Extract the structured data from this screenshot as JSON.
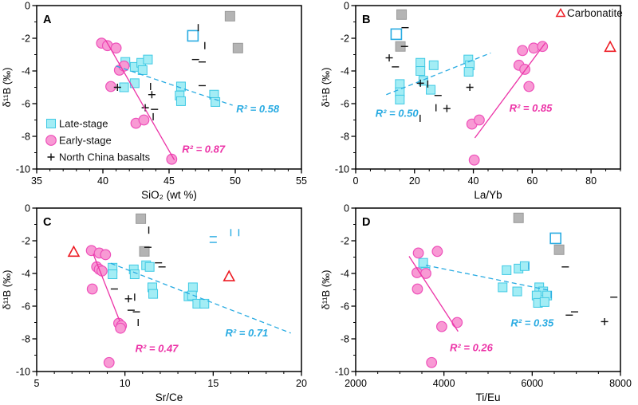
{
  "figure": {
    "ylabel": "δ¹¹B (‰)",
    "style": {
      "late_fill": "#a3edf5",
      "late_edge": "#3fc9e4",
      "early_fill": "#f89ad4",
      "early_edge": "#ee50ba",
      "gray_fill": "#b4b4b4",
      "gray_edge": "#9a9a9a",
      "cyan_line": "#29abe2",
      "magenta_line": "#ec33a7",
      "red": "#ed1c24",
      "black": "#111111"
    }
  },
  "chart_data": [
    {
      "id": "A",
      "type": "scatter",
      "xlabel": "SiO₂ (wt %)",
      "ylabel": "δ¹¹B (‰)",
      "xlim": [
        35,
        55
      ],
      "xticks": [
        35,
        40,
        45,
        50,
        55
      ],
      "xminor": 1,
      "ylim": [
        -10,
        0
      ],
      "yticks": [
        0,
        -2,
        -4,
        -6,
        -8,
        -10
      ],
      "yminor": 1,
      "series": [
        {
          "name": "Late-stage",
          "marker": "square",
          "points": [
            [
              41.7,
              -3.45
            ],
            [
              42.4,
              -3.75
            ],
            [
              42.9,
              -3.5
            ],
            [
              43.4,
              -3.3
            ],
            [
              43.0,
              -3.95
            ],
            [
              41.6,
              -5.0
            ],
            [
              42.4,
              -4.75
            ],
            [
              45.9,
              -4.95
            ],
            [
              45.8,
              -5.5
            ],
            [
              45.9,
              -5.85
            ],
            [
              48.4,
              -5.45
            ],
            [
              48.5,
              -5.9
            ]
          ]
        },
        {
          "name": "Late-stage open",
          "marker": "opensquare",
          "points": [
            [
              46.8,
              -1.85
            ]
          ]
        },
        {
          "name": "Reference",
          "marker": "graysquare",
          "points": [
            [
              49.6,
              -0.65
            ],
            [
              50.2,
              -2.6
            ]
          ]
        },
        {
          "name": "Early-stage",
          "marker": "circle",
          "points": [
            [
              39.9,
              -2.3
            ],
            [
              40.35,
              -2.45
            ],
            [
              41.0,
              -2.6
            ],
            [
              41.25,
              -3.95
            ],
            [
              41.6,
              -3.7
            ],
            [
              40.6,
              -4.95
            ],
            [
              42.5,
              -7.2
            ],
            [
              43.1,
              -7.0
            ],
            [
              45.2,
              -9.4
            ]
          ]
        },
        {
          "name": "North China basalts",
          "marker": "glyph",
          "points": [
            [
              47.2,
              -1.35,
              "vbar"
            ],
            [
              47.7,
              -2.45,
              "vbar"
            ],
            [
              47.0,
              -3.3,
              "dash"
            ],
            [
              47.5,
              -3.45,
              "dash"
            ],
            [
              47.5,
              -4.9,
              "dash"
            ],
            [
              41.1,
              -5.0,
              "plus"
            ],
            [
              43.6,
              -4.95,
              "vbar"
            ],
            [
              43.7,
              -5.45,
              "plus"
            ],
            [
              43.2,
              -6.25,
              "plus"
            ],
            [
              43.9,
              -6.35,
              "dash"
            ],
            [
              43.8,
              -6.8,
              "vbar"
            ]
          ]
        }
      ],
      "trendlines": [
        {
          "color": "#29abe2",
          "dashed": true,
          "x1": 41.0,
          "y1": -3.7,
          "x2": 49.8,
          "y2": -6.1,
          "label": "R² = 0.58",
          "label_x": 51.7,
          "label_y": -6.35
        },
        {
          "color": "#ec33a7",
          "dashed": false,
          "x1": 40.2,
          "y1": -2.1,
          "x2": 45.4,
          "y2": -9.45,
          "label": "R² = 0.87",
          "label_x": 47.6,
          "label_y": -8.8
        }
      ],
      "legend": {
        "items": [
          {
            "marker": "square",
            "label": "Late-stage"
          },
          {
            "marker": "circle",
            "label": "Early-stage"
          },
          {
            "marker": "plus",
            "label": "North China basalts"
          }
        ]
      }
    },
    {
      "id": "B",
      "type": "scatter",
      "xlabel": "La/Yb",
      "ylabel": "δ¹¹B (‰)",
      "xlim": [
        0,
        90
      ],
      "xticks": [
        0,
        20,
        40,
        60,
        80
      ],
      "xminor": 5,
      "ylim": [
        -10,
        0
      ],
      "yticks": [
        0,
        -2,
        -4,
        -6,
        -8,
        -10
      ],
      "yminor": 1,
      "series": [
        {
          "name": "Late-stage",
          "marker": "square",
          "points": [
            [
              15,
              -4.8
            ],
            [
              15,
              -5.3
            ],
            [
              15,
              -5.75
            ],
            [
              22,
              -3.5
            ],
            [
              22,
              -4.0
            ],
            [
              23,
              -4.6
            ],
            [
              25.5,
              -5.15
            ],
            [
              26.5,
              -3.65
            ],
            [
              38.3,
              -3.3
            ],
            [
              38.8,
              -3.65
            ],
            [
              38.4,
              -4.05
            ]
          ]
        },
        {
          "name": "Late-stage open",
          "marker": "opensquare",
          "points": [
            [
              13.8,
              -1.75
            ]
          ]
        },
        {
          "name": "Reference",
          "marker": "graysquare",
          "points": [
            [
              15.6,
              -0.55
            ],
            [
              15.2,
              -2.5
            ]
          ]
        },
        {
          "name": "Early-stage",
          "marker": "circle",
          "points": [
            [
              56.7,
              -2.75
            ],
            [
              60.5,
              -2.6
            ],
            [
              63.5,
              -2.5
            ],
            [
              55.5,
              -3.65
            ],
            [
              57.5,
              -3.9
            ],
            [
              58.9,
              -4.95
            ],
            [
              39.5,
              -7.25
            ],
            [
              42.0,
              -7.0
            ],
            [
              40.3,
              -9.45
            ]
          ]
        },
        {
          "name": "North China basalts",
          "marker": "glyph",
          "points": [
            [
              16.8,
              -1.35,
              "dash"
            ],
            [
              16.6,
              -2.5,
              "dash"
            ],
            [
              11.4,
              -3.2,
              "plus"
            ],
            [
              13.5,
              -3.75,
              "dash"
            ],
            [
              22.0,
              -4.75,
              "plus"
            ],
            [
              24.5,
              -4.8,
              "vbar"
            ],
            [
              28.0,
              -5.5,
              "dash"
            ],
            [
              27.3,
              -6.25,
              "vbar"
            ],
            [
              31.0,
              -6.3,
              "plus"
            ],
            [
              21.9,
              -6.9,
              "vbar"
            ],
            [
              38.8,
              -5.0,
              "plus"
            ]
          ]
        },
        {
          "name": "Carbonatite",
          "marker": "triangle",
          "points": [
            [
              86.5,
              -2.55
            ]
          ]
        }
      ],
      "trendlines": [
        {
          "color": "#29abe2",
          "dashed": true,
          "x1": 10.4,
          "y1": -5.45,
          "x2": 45.9,
          "y2": -2.9,
          "label": "R² = 0.50",
          "label_x": 14.0,
          "label_y": -6.6
        },
        {
          "color": "#ec33a7",
          "dashed": false,
          "x1": 40.5,
          "y1": -8.1,
          "x2": 64.4,
          "y2": -2.3,
          "label": "R² = 0.85",
          "label_x": 59.5,
          "label_y": -6.3
        }
      ],
      "legend2": {
        "marker": "triangle",
        "label": "Carbonatite"
      }
    },
    {
      "id": "C",
      "type": "scatter",
      "xlabel": "Sr/Ce",
      "ylabel": "δ¹¹B (‰)",
      "xlim": [
        5,
        20
      ],
      "xticks": [
        5,
        10,
        15,
        20
      ],
      "xminor": 1,
      "ylim": [
        -10,
        0
      ],
      "yticks": [
        0,
        -2,
        -4,
        -6,
        -8,
        -10
      ],
      "yminor": 1,
      "series": [
        {
          "name": "Late-stage",
          "marker": "square",
          "points": [
            [
              9.3,
              -3.65
            ],
            [
              9.3,
              -4.05
            ],
            [
              10.5,
              -3.75
            ],
            [
              10.55,
              -4.05
            ],
            [
              11.2,
              -3.5
            ],
            [
              11.4,
              -3.6
            ],
            [
              11.55,
              -4.85
            ],
            [
              11.6,
              -5.25
            ],
            [
              13.85,
              -4.85
            ],
            [
              13.6,
              -5.4
            ],
            [
              13.8,
              -5.35
            ],
            [
              14.1,
              -5.85
            ],
            [
              14.5,
              -5.85
            ]
          ]
        },
        {
          "name": "Reference",
          "marker": "graysquare",
          "points": [
            [
              10.9,
              -0.65
            ],
            [
              11.1,
              -2.65
            ]
          ]
        },
        {
          "name": "Early-stage",
          "marker": "circle",
          "points": [
            [
              8.1,
              -2.6
            ],
            [
              8.55,
              -2.75
            ],
            [
              8.9,
              -2.85
            ],
            [
              8.4,
              -3.6
            ],
            [
              8.55,
              -3.75
            ],
            [
              8.7,
              -3.85
            ],
            [
              8.15,
              -4.95
            ],
            [
              9.65,
              -7.05
            ],
            [
              9.8,
              -7.2
            ],
            [
              9.75,
              -7.35
            ],
            [
              9.1,
              -9.45
            ]
          ]
        },
        {
          "name": "North China basalts",
          "marker": "glyph",
          "points": [
            [
              11.35,
              -1.35,
              "vbar"
            ],
            [
              11.3,
              -2.4,
              "dash"
            ],
            [
              11.9,
              -3.35,
              "dash"
            ],
            [
              12.1,
              -3.6,
              "dash"
            ],
            [
              9.4,
              -4.95,
              "dash"
            ],
            [
              10.2,
              -5.55,
              "plus"
            ],
            [
              10.55,
              -5.45,
              "vbar"
            ],
            [
              10.35,
              -6.25,
              "dash"
            ],
            [
              10.65,
              -6.35,
              "dash"
            ],
            [
              10.75,
              -7.0,
              "vbar"
            ]
          ]
        },
        {
          "name": "Late-stage ticks",
          "marker": "glyph",
          "color": "#29abe2",
          "points": [
            [
              15.0,
              -1.75,
              "dash"
            ],
            [
              15.0,
              -2.1,
              "dash"
            ],
            [
              16.0,
              -1.5,
              "vbar"
            ],
            [
              16.45,
              -1.5,
              "vbar"
            ]
          ]
        },
        {
          "name": "Carbonatite",
          "marker": "triangle",
          "points": [
            [
              7.1,
              -2.7
            ],
            [
              15.9,
              -4.2
            ]
          ]
        }
      ],
      "trendlines": [
        {
          "color": "#29abe2",
          "dashed": true,
          "x1": 9.2,
          "y1": -3.38,
          "x2": 19.4,
          "y2": -7.65,
          "label": "R² = 0.71",
          "label_x": 16.9,
          "label_y": -7.65
        },
        {
          "color": "#ec33a7",
          "dashed": false,
          "x1": 8.2,
          "y1": -2.8,
          "x2": 9.7,
          "y2": -6.9,
          "label": "R² = 0.47",
          "label_x": 11.8,
          "label_y": -8.6
        }
      ]
    },
    {
      "id": "D",
      "type": "scatter",
      "xlabel": "Ti/Eu",
      "ylabel": "δ¹¹B (‰)",
      "xlim": [
        2000,
        8000
      ],
      "xticks": [
        2000,
        4000,
        6000,
        8000
      ],
      "xminor": 500,
      "ylim": [
        -10,
        0
      ],
      "yticks": [
        0,
        -2,
        -4,
        -6,
        -8,
        -10
      ],
      "yminor": 1,
      "series": [
        {
          "name": "Late-stage",
          "marker": "square",
          "points": [
            [
              3530,
              -3.35
            ],
            [
              3580,
              -3.9
            ],
            [
              5420,
              -3.8
            ],
            [
              5690,
              -3.7
            ],
            [
              5830,
              -3.55
            ],
            [
              5330,
              -4.85
            ],
            [
              5660,
              -5.1
            ],
            [
              6160,
              -4.85
            ],
            [
              6250,
              -5.1
            ],
            [
              6100,
              -5.35
            ],
            [
              6340,
              -5.35
            ],
            [
              6130,
              -5.8
            ],
            [
              6280,
              -5.75
            ]
          ]
        },
        {
          "name": "Late-stage open",
          "marker": "opensquare",
          "points": [
            [
              6530,
              -1.85
            ]
          ]
        },
        {
          "name": "Reference",
          "marker": "graysquare",
          "points": [
            [
              5690,
              -0.6
            ],
            [
              6610,
              -2.55
            ]
          ]
        },
        {
          "name": "Early-stage",
          "marker": "circle",
          "points": [
            [
              3420,
              -2.75
            ],
            [
              3850,
              -2.65
            ],
            [
              3390,
              -3.95
            ],
            [
              3590,
              -4.0
            ],
            [
              3400,
              -4.95
            ],
            [
              3950,
              -7.25
            ],
            [
              4300,
              -7.0
            ],
            [
              3720,
              -9.45
            ]
          ]
        },
        {
          "name": "North China basalts",
          "marker": "glyph",
          "points": [
            [
              6750,
              -3.6,
              "dash"
            ],
            [
              7850,
              -5.45,
              "dash"
            ],
            [
              6840,
              -6.55,
              "dash"
            ],
            [
              6960,
              -6.35,
              "dash"
            ],
            [
              7640,
              -6.95,
              "plus"
            ]
          ]
        },
        {
          "name": "Late-stage ticks",
          "marker": "glyph",
          "color": "#29abe2",
          "points": [
            [
              5920,
              -3.55,
              "vbar"
            ],
            [
              6430,
              -5.3,
              "vbar"
            ]
          ]
        }
      ],
      "trendlines": [
        {
          "color": "#29abe2",
          "dashed": true,
          "x1": 3590,
          "y1": -3.5,
          "x2": 6420,
          "y2": -5.05,
          "label": "R² = 0.35",
          "label_x": 6000,
          "label_y": -7.05
        },
        {
          "color": "#ec33a7",
          "dashed": false,
          "x1": 3210,
          "y1": -2.95,
          "x2": 4320,
          "y2": -7.55,
          "label": "R² = 0.26",
          "label_x": 4620,
          "label_y": -8.55
        }
      ]
    }
  ]
}
